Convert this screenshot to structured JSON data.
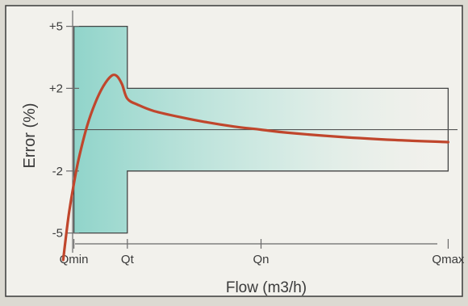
{
  "chart_data": {
    "type": "line",
    "title": "",
    "xlabel": "Flow (m3/h)",
    "ylabel": "Error (%)",
    "x_ticks": [
      "Qmin",
      "Qt",
      "Qn",
      "Qmax"
    ],
    "y_ticks": [
      "+5",
      "+2",
      "-2",
      "-5"
    ],
    "y_tick_values": [
      5,
      2,
      -2,
      -5
    ],
    "x_tick_values": [
      1,
      2,
      4.5,
      8
    ],
    "xlim": [
      0.75,
      8.25
    ],
    "ylim": [
      -6.5,
      6
    ],
    "grid": false,
    "colors": {
      "curve": "#c0462c",
      "envelope_stroke": "#444444",
      "envelope_fill": "#8fd3c9",
      "panel": "#f2f1ec",
      "axis": "#6a6a6a"
    },
    "tolerance_envelope": [
      {
        "x": 1,
        "y": 5
      },
      {
        "x": 2,
        "y": 5
      },
      {
        "x": 2,
        "y": 2
      },
      {
        "x": 8,
        "y": 2
      },
      {
        "x": 8,
        "y": -2
      },
      {
        "x": 2,
        "y": -2
      },
      {
        "x": 2,
        "y": -5
      },
      {
        "x": 1,
        "y": -5
      }
    ],
    "series": [
      {
        "x": [
          0.8,
          0.9,
          1.0,
          1.1,
          1.25,
          1.4,
          1.55,
          1.7,
          1.8,
          1.9,
          2.0,
          2.2,
          2.5,
          3.0,
          3.5,
          4.0,
          4.5,
          5.0,
          6.0,
          7.0,
          8.0
        ],
        "y": [
          -6.3,
          -4.2,
          -2.6,
          -1.3,
          0.2,
          1.3,
          2.1,
          2.6,
          2.6,
          2.2,
          1.5,
          1.2,
          0.9,
          0.6,
          0.35,
          0.15,
          0.0,
          -0.15,
          -0.35,
          -0.5,
          -0.6
        ]
      }
    ]
  }
}
